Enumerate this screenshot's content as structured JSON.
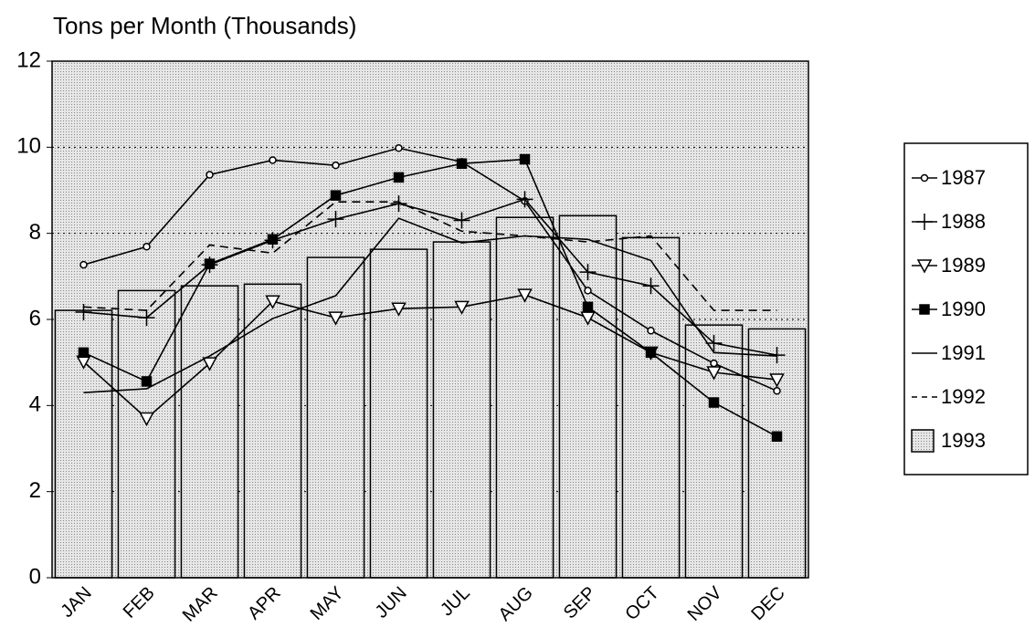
{
  "chart_data": {
    "type": "combo",
    "title": "Tons per Month (Thousands)",
    "categories": [
      "JAN",
      "FEB",
      "MAR",
      "APR",
      "MAY",
      "JUN",
      "JUL",
      "AUG",
      "SEP",
      "OCT",
      "NOV",
      "DEC"
    ],
    "ylim": [
      0,
      12
    ],
    "yticks": [
      0,
      2,
      4,
      6,
      8,
      10,
      12
    ],
    "grid": true,
    "legend": "right",
    "series": [
      {
        "name": "1987",
        "type": "line",
        "marker": "circle",
        "color": "#000000",
        "values": [
          7.27,
          7.69,
          9.36,
          9.7,
          9.58,
          9.98,
          9.66,
          8.75,
          6.67,
          5.74,
          4.98,
          4.34
        ]
      },
      {
        "name": "1988",
        "type": "line",
        "marker": "plus",
        "color": "#000000",
        "values": [
          6.17,
          6.04,
          7.27,
          7.84,
          8.33,
          8.69,
          8.3,
          8.79,
          7.1,
          6.78,
          5.45,
          5.17
        ]
      },
      {
        "name": "1989",
        "type": "line",
        "marker": "triangle",
        "color": "#000000",
        "values": [
          5.02,
          3.7,
          4.98,
          6.42,
          6.04,
          6.25,
          6.29,
          6.57,
          6.04,
          5.23,
          4.77,
          4.6
        ]
      },
      {
        "name": "1990",
        "type": "line",
        "marker": "square",
        "color": "#000000",
        "values": [
          5.23,
          4.56,
          7.29,
          7.86,
          8.88,
          9.3,
          9.62,
          9.72,
          6.29,
          5.23,
          4.07,
          3.28
        ]
      },
      {
        "name": "1991",
        "type": "line",
        "marker": "none",
        "color": "#000000",
        "values": [
          4.3,
          4.39,
          5.15,
          6.02,
          6.55,
          8.35,
          7.78,
          7.94,
          7.86,
          7.37,
          5.23,
          5.15
        ]
      },
      {
        "name": "1992",
        "type": "line",
        "marker": "none",
        "dashed": true,
        "color": "#000000",
        "values": [
          6.29,
          6.21,
          7.73,
          7.54,
          8.73,
          8.73,
          8.05,
          7.94,
          7.8,
          7.94,
          6.21,
          6.21
        ]
      },
      {
        "name": "1993",
        "type": "bar",
        "color": "#d4d4d4",
        "values": [
          6.21,
          6.67,
          6.78,
          6.82,
          7.44,
          7.63,
          7.8,
          8.37,
          8.41,
          7.9,
          5.87,
          5.78
        ]
      }
    ]
  }
}
